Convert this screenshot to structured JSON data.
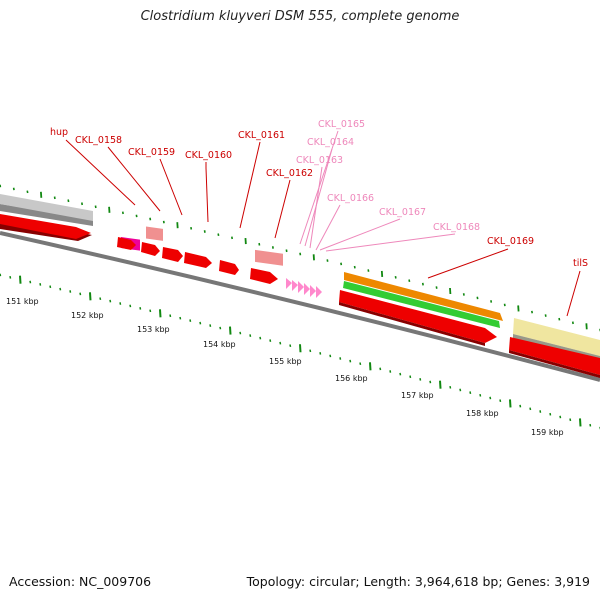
{
  "title": "Clostridium kluyveri DSM 555, complete genome",
  "footer": {
    "accession": "Accession: NC_009706",
    "topology": "Topology: circular; Length: 3,964,618 bp; Genes: 3,919"
  },
  "colors": {
    "cds": "#ee0000",
    "trna": "#ff66cc",
    "pseudo": "#f09090",
    "rrna": "#ee8800",
    "rrna_green": "#33cc33",
    "tmrna": "#eeddaa",
    "gray_feature": "#c0c0c0",
    "backbone": "#777777",
    "ticks": "#118811",
    "label_dark": "#cc0000",
    "label_light": "#ee88bb"
  },
  "ruler": {
    "labels": [
      {
        "text": "151 kbp",
        "kbp": 151
      },
      {
        "text": "152 kbp",
        "kbp": 152
      },
      {
        "text": "153 kbp",
        "kbp": 153
      },
      {
        "text": "154 kbp",
        "kbp": 154
      },
      {
        "text": "155 kbp",
        "kbp": 155
      },
      {
        "text": "156 kbp",
        "kbp": 156
      },
      {
        "text": "157 kbp",
        "kbp": 157
      },
      {
        "text": "158 kbp",
        "kbp": 158
      },
      {
        "text": "159 kbp",
        "kbp": 159
      }
    ]
  },
  "gene_labels": [
    {
      "name": "hup",
      "tone": "dark"
    },
    {
      "name": "CKL_0158",
      "tone": "dark"
    },
    {
      "name": "CKL_0159",
      "tone": "dark"
    },
    {
      "name": "CKL_0160",
      "tone": "dark"
    },
    {
      "name": "CKL_0161",
      "tone": "dark"
    },
    {
      "name": "CKL_0162",
      "tone": "dark"
    },
    {
      "name": "CKL_0165",
      "tone": "light"
    },
    {
      "name": "CKL_0164",
      "tone": "light"
    },
    {
      "name": "CKL_0163",
      "tone": "light"
    },
    {
      "name": "CKL_0166",
      "tone": "light"
    },
    {
      "name": "CKL_0167",
      "tone": "light"
    },
    {
      "name": "CKL_0168",
      "tone": "light"
    },
    {
      "name": "CKL_0169",
      "tone": "dark"
    },
    {
      "name": "tilS",
      "tone": "dark"
    }
  ]
}
